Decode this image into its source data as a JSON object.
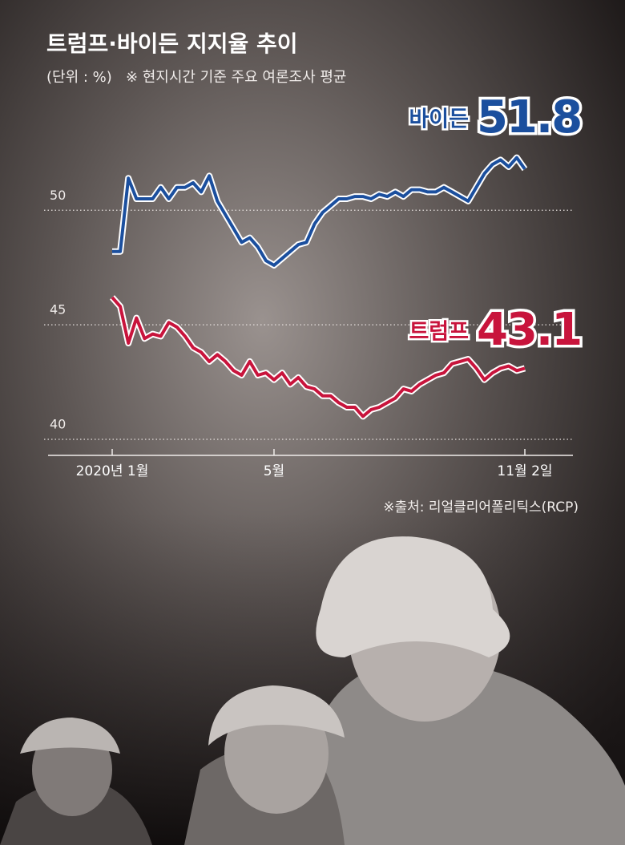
{
  "chart_data": {
    "type": "line",
    "title": "트럼프·바이든 지지율 추이",
    "subtitle": "(단위 : %)   ※ 현지시간 기준 주요 여론조사 평균",
    "source": "※출처: 리얼클리어폴리틱스(RCP)",
    "categories": [
      "2020년 1월",
      null,
      null,
      null,
      null,
      null,
      null,
      null,
      null,
      null,
      null,
      null,
      null,
      null,
      null,
      null,
      null,
      null,
      null,
      null,
      "5월",
      null,
      null,
      null,
      null,
      null,
      null,
      null,
      null,
      null,
      null,
      null,
      null,
      null,
      null,
      null,
      null,
      null,
      null,
      null,
      null,
      null,
      null,
      null,
      null,
      null,
      null,
      null,
      null,
      null,
      null,
      "11월 2일"
    ],
    "series": [
      {
        "name": "바이든",
        "color": "#1b4f9e",
        "values": [
          48.2,
          48.2,
          51.4,
          50.5,
          50.5,
          50.5,
          51.0,
          50.5,
          51.0,
          51.0,
          51.2,
          50.8,
          51.5,
          50.4,
          49.8,
          49.2,
          48.6,
          48.8,
          48.4,
          47.8,
          47.6,
          47.9,
          48.2,
          48.5,
          48.6,
          49.4,
          49.9,
          50.2,
          50.5,
          50.5,
          50.6,
          50.6,
          50.5,
          50.7,
          50.6,
          50.8,
          50.6,
          50.9,
          50.9,
          50.8,
          50.8,
          51.0,
          50.8,
          50.6,
          50.4,
          51.0,
          51.6,
          52.0,
          52.2,
          51.9,
          52.3,
          51.8
        ]
      },
      {
        "name": "트럼프",
        "color": "#c8143c",
        "values": [
          46.2,
          45.8,
          44.2,
          45.3,
          44.4,
          44.6,
          44.5,
          45.1,
          44.9,
          44.5,
          44.0,
          43.8,
          43.4,
          43.7,
          43.4,
          43.0,
          42.8,
          43.4,
          42.8,
          42.9,
          42.6,
          42.9,
          42.4,
          42.7,
          42.3,
          42.2,
          41.9,
          41.9,
          41.6,
          41.4,
          41.4,
          41.0,
          41.3,
          41.4,
          41.6,
          41.8,
          42.2,
          42.1,
          42.4,
          42.6,
          42.8,
          42.9,
          43.3,
          43.4,
          43.5,
          43.1,
          42.6,
          42.9,
          43.1,
          43.2,
          43.0,
          43.1
        ]
      }
    ],
    "ylim": [
      39.3,
      54
    ],
    "yticks": [
      40,
      45,
      50
    ],
    "grid": true
  }
}
